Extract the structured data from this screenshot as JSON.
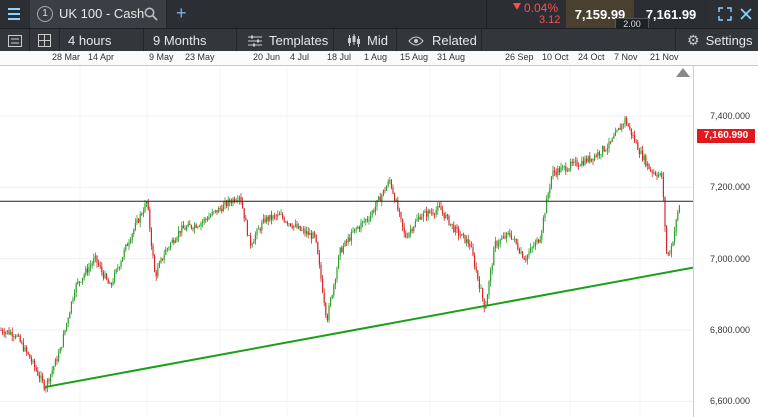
{
  "header": {
    "tab_number": "1",
    "instrument": "UK 100 - Cash",
    "change_pct": "0.04%",
    "change_pts": "3.12",
    "sell_price": "7,159.99",
    "buy_price": "7,161.99",
    "spread": "2.00",
    "colors": {
      "down": "#ff4d4d",
      "accent": "#8fd3ff"
    }
  },
  "toolbar": {
    "interval": "4 hours",
    "range": "9 Months",
    "templates": "Templates",
    "price_type": "Mid",
    "related": "Related",
    "settings": "Settings"
  },
  "timeline": {
    "dates": [
      "28 Mar",
      "14 Apr",
      "9 May",
      "23 May",
      "20 Jun",
      "4 Jul",
      "18 Jul",
      "1 Aug",
      "15 Aug",
      "31 Aug",
      "26 Sep",
      "10 Oct",
      "24 Oct",
      "7 Nov",
      "21 Nov"
    ]
  },
  "chart": {
    "current_price_label": "7,160.990",
    "current_price": 7160.99,
    "y_ticks": [
      "7,400.000",
      "7,200.000",
      "7,000.000",
      "6,800.000",
      "6,600.000"
    ],
    "y_values": [
      7400,
      7200,
      7000,
      6800,
      6600
    ],
    "colors": {
      "up": "#2ca02c",
      "down": "#d62728",
      "trendline": "#19a019",
      "price_tag": "#e0191f"
    }
  }
}
